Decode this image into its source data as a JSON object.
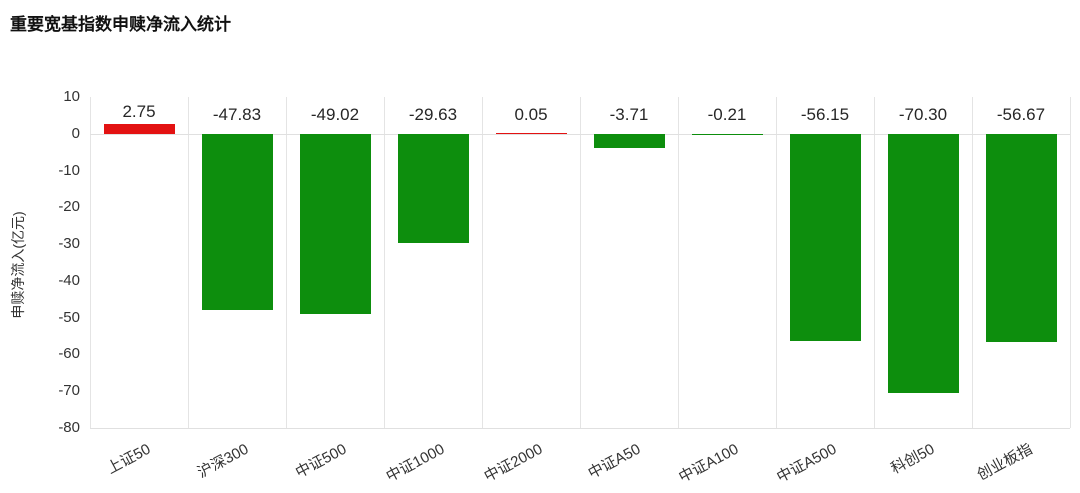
{
  "chart_data": {
    "type": "bar",
    "title": "重要宽基指数申赎净流入统计",
    "ylabel": "申赎净流入(亿元)",
    "categories": [
      "上证50",
      "沪深300",
      "中证500",
      "中证1000",
      "中证2000",
      "中证A50",
      "中证A100",
      "中证A500",
      "科创50",
      "创业板指"
    ],
    "values": [
      2.75,
      -47.83,
      -49.02,
      -29.63,
      0.05,
      -3.71,
      -0.21,
      -56.15,
      -70.3,
      -56.67
    ],
    "value_labels": [
      "2.75",
      "-47.83",
      "-49.02",
      "-29.63",
      "0.05",
      "-3.71",
      "-0.21",
      "-56.15",
      "-70.30",
      "-56.67"
    ],
    "ylim": [
      -80,
      10
    ],
    "ytick_step": 10,
    "grid": "vertical",
    "legend": "none",
    "colors": {
      "positive": "#e31212",
      "negative": "#0d8e0d",
      "grid": "#e4e4e4",
      "label": "#262626",
      "axis_text": "#333333"
    }
  }
}
